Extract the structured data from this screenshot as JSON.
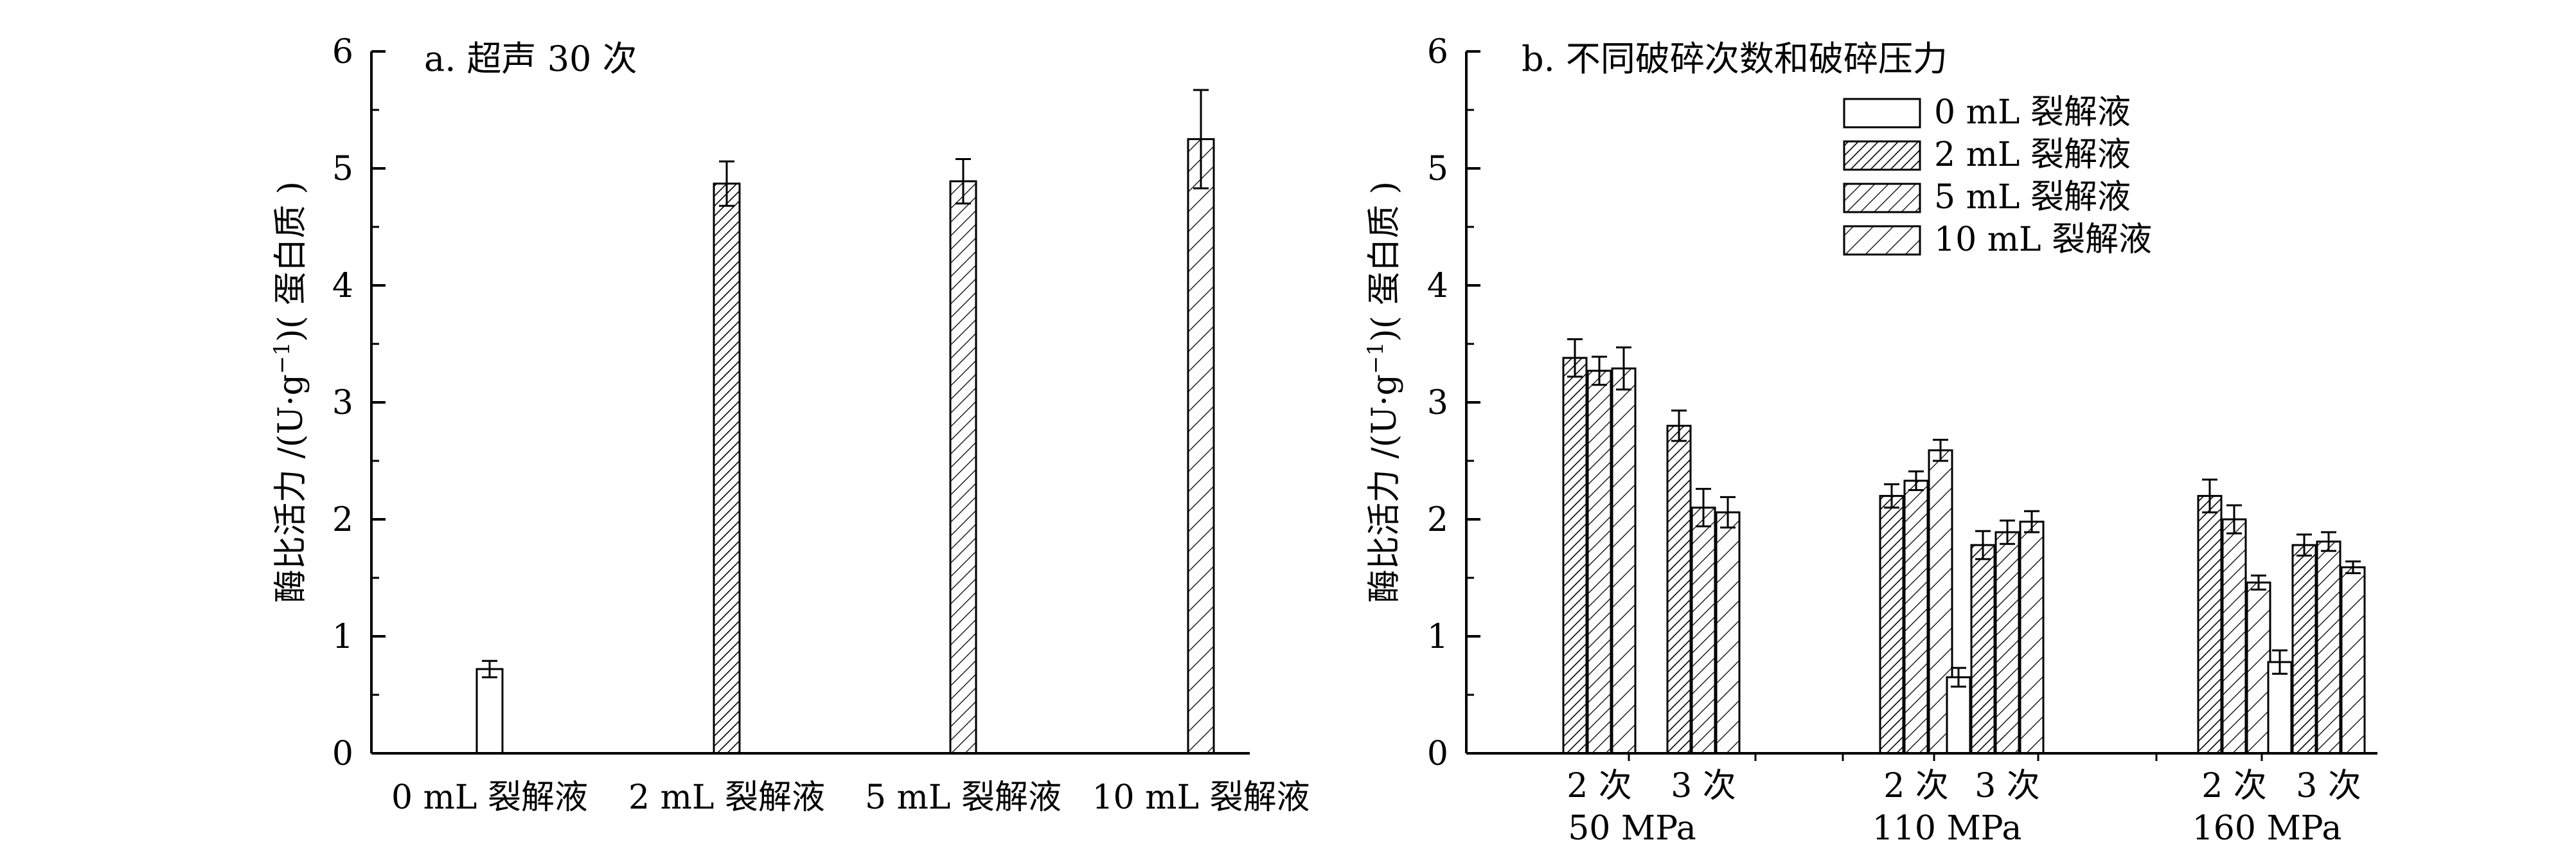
{
  "chart_data": [
    {
      "type": "bar",
      "title": "a. 超声 30 次",
      "ylabel_main": "酶比活力 /(U·g",
      "ylabel_sup": "−1",
      "ylabel_tail": ")( 蛋白质 )",
      "ylim": [
        0,
        6
      ],
      "yticks": [
        "0",
        "1",
        "2",
        "3",
        "4",
        "5",
        "6"
      ],
      "categories": [
        "0 mL 裂解液",
        "2 mL 裂解液",
        "5 mL 裂解液",
        "10 mL 裂解液"
      ],
      "values": [
        0.72,
        4.87,
        4.89,
        5.25
      ],
      "errors": [
        0.07,
        0.19,
        0.19,
        0.42
      ],
      "patterns": [
        "none",
        "dense",
        "medium",
        "sparse"
      ]
    },
    {
      "type": "bar",
      "title": "b. 不同破碎次数和破碎压力",
      "ylabel_main": "酶比活力 /(U·g",
      "ylabel_sup": "−1",
      "ylabel_tail": ")( 蛋白质 )",
      "ylim": [
        0,
        6
      ],
      "yticks": [
        "0",
        "1",
        "2",
        "3",
        "4",
        "5",
        "6"
      ],
      "legend": [
        "0 mL 裂解液",
        "2 mL 裂解液",
        "5 mL 裂解液",
        "10 mL 裂解液"
      ],
      "legend_patterns": [
        "none",
        "dense",
        "medium",
        "sparse"
      ],
      "pressures": [
        "50 MPa",
        "110 MPa",
        "160 MPa"
      ],
      "subgroups": [
        "2 次",
        "3 次"
      ],
      "groups": [
        {
          "pressure": "50 MPa",
          "passes": "2 次",
          "values": [
            null,
            3.38,
            3.27,
            3.29
          ],
          "errors": [
            null,
            0.16,
            0.12,
            0.18
          ]
        },
        {
          "pressure": "50 MPa",
          "passes": "3 次",
          "values": [
            null,
            2.8,
            2.1,
            2.06
          ],
          "errors": [
            null,
            0.13,
            0.16,
            0.13
          ]
        },
        {
          "pressure": "110 MPa",
          "passes": "2 次",
          "values": [
            null,
            2.2,
            2.33,
            2.59
          ],
          "errors": [
            null,
            0.1,
            0.08,
            0.09
          ]
        },
        {
          "pressure": "110 MPa",
          "passes": "3 次",
          "values": [
            0.65,
            1.78,
            1.89,
            1.98
          ],
          "errors": [
            0.08,
            0.12,
            0.1,
            0.09
          ]
        },
        {
          "pressure": "160 MPa",
          "passes": "2 次",
          "values": [
            null,
            2.2,
            2.0,
            1.46
          ],
          "errors": [
            null,
            0.14,
            0.12,
            0.06
          ]
        },
        {
          "pressure": "160 MPa",
          "passes": "3 次",
          "values": [
            0.78,
            1.78,
            1.81,
            1.59
          ],
          "errors": [
            0.1,
            0.09,
            0.08,
            0.05
          ]
        }
      ]
    }
  ]
}
